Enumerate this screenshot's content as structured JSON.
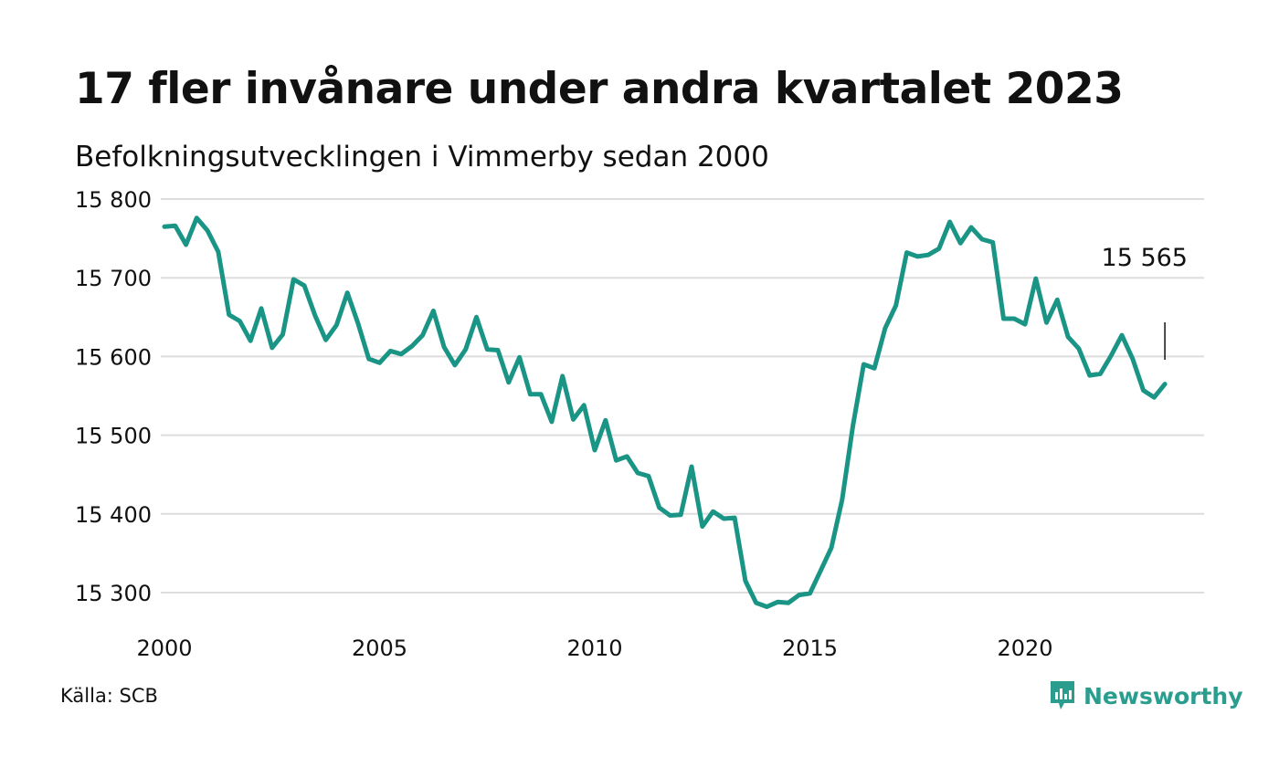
{
  "title": "17 fler invånare under andra kvartalet 2023",
  "subtitle": "Befolkningsutvecklingen i Vimmerby sedan 2000",
  "source": "Källa: SCB",
  "brand": "Newsworthy",
  "colors": {
    "line": "#1a9585",
    "grid": "#dddddd",
    "brand": "#2a9d8f",
    "text": "#111111"
  },
  "chart_data": {
    "type": "line",
    "title": "17 fler invånare under andra kvartalet 2023",
    "subtitle": "Befolkningsutvecklingen i Vimmerby sedan 2000",
    "xlabel": "",
    "ylabel": "",
    "xlim": [
      2000,
      2024
    ],
    "ylim": [
      15250,
      15800
    ],
    "x_ticks": [
      2000,
      2005,
      2010,
      2015,
      2020
    ],
    "x_tick_labels": [
      "2000",
      "2005",
      "2010",
      "2015",
      "2020"
    ],
    "y_ticks": [
      15300,
      15400,
      15500,
      15600,
      15700,
      15800
    ],
    "y_tick_labels": [
      "15 300",
      "15 400",
      "15 500",
      "15 600",
      "15 700",
      "15 800"
    ],
    "grid": true,
    "legend": "none",
    "annotation": {
      "label": "15 565",
      "value": 15565
    },
    "series": [
      {
        "x_start": 2000.0,
        "x_step": 0.25,
        "values": [
          15765,
          15766,
          15742,
          15776,
          15760,
          15733,
          15653,
          15645,
          15620,
          15661,
          15611,
          15628,
          15698,
          15690,
          15652,
          15621,
          15640,
          15681,
          15642,
          15597,
          15592,
          15607,
          15603,
          15613,
          15627,
          15658,
          15612,
          15589,
          15609,
          15650,
          15609,
          15608,
          15567,
          15599,
          15552,
          15552,
          15517,
          15575,
          15520,
          15538,
          15481,
          15519,
          15468,
          15473,
          15452,
          15448,
          15408,
          15398,
          15399,
          15460,
          15384,
          15403,
          15394,
          15395,
          15315,
          15287,
          15282,
          15288,
          15287,
          15297,
          15299,
          15328,
          15357,
          15418,
          15512,
          15590,
          15585,
          15636,
          15665,
          15732,
          15727,
          15729,
          15737,
          15771,
          15744,
          15764,
          15749,
          15745,
          15648,
          15648,
          15641,
          15699,
          15643,
          15672,
          15625,
          15610,
          15576,
          15578,
          15601,
          15627,
          15597,
          15557,
          15548,
          15565
        ]
      }
    ]
  }
}
